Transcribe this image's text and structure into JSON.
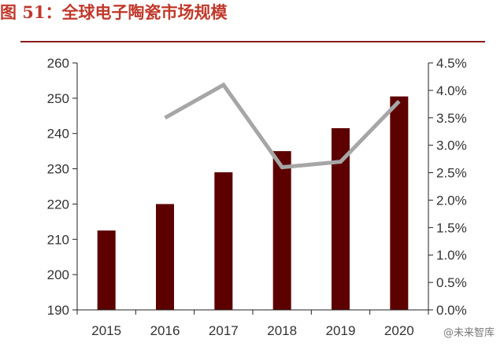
{
  "header": {
    "figure_title": "图 51：全球电子陶瓷市场规模"
  },
  "watermark": "@未来智库",
  "chart_data": {
    "type": "bar",
    "categories": [
      "2015",
      "2016",
      "2017",
      "2018",
      "2019",
      "2020"
    ],
    "series": [
      {
        "type": "bar",
        "axis": "left",
        "values": [
          212.5,
          220,
          229,
          235,
          241.5,
          250.5
        ],
        "color": "#5c0000"
      },
      {
        "type": "line",
        "axis": "right",
        "values": [
          null,
          3.5,
          4.1,
          2.6,
          2.7,
          3.8
        ],
        "color": "#a6a6a6"
      }
    ],
    "y_left": {
      "min": 190,
      "max": 260,
      "step": 10,
      "ticks": [
        "190",
        "200",
        "210",
        "220",
        "230",
        "240",
        "250",
        "260"
      ]
    },
    "y_right": {
      "min": 0,
      "max": 4.5,
      "step": 0.5,
      "unit": "%",
      "ticks": [
        "0.0%",
        "0.5%",
        "1.0%",
        "1.5%",
        "2.0%",
        "2.5%",
        "3.0%",
        "3.5%",
        "4.0%",
        "4.5%"
      ]
    },
    "grid": false,
    "legend": "none"
  }
}
